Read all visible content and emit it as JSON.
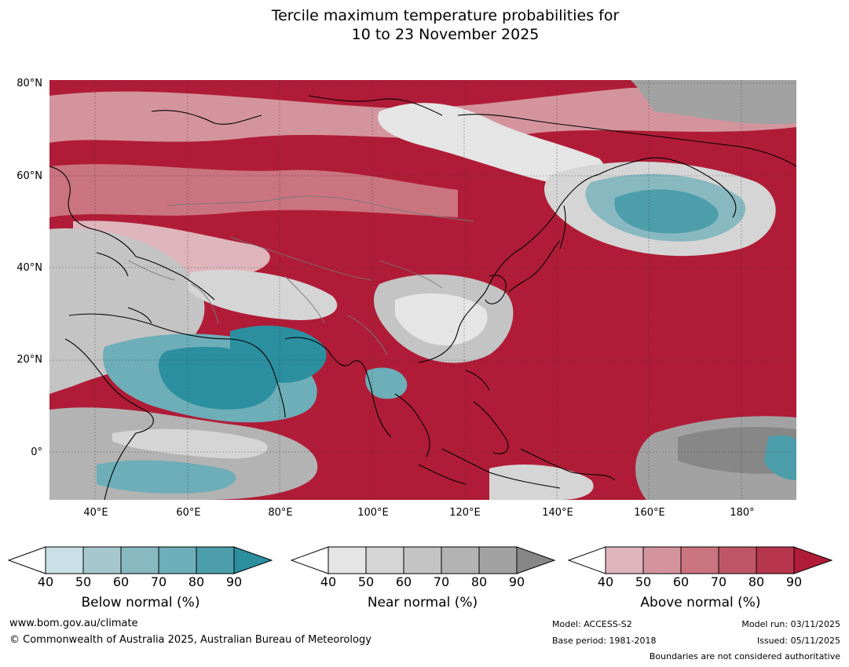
{
  "title_line1": "Tercile maximum temperature probabilities for",
  "title_line2": "10 to 23 November 2025",
  "axes": {
    "lat_labels": [
      "80°N",
      "60°N",
      "40°N",
      "20°N",
      "0°"
    ],
    "lon_labels": [
      "40°E",
      "60°E",
      "80°E",
      "100°E",
      "120°E",
      "140°E",
      "160°E",
      "180°"
    ]
  },
  "legend": {
    "below": {
      "title": "Below normal (%)",
      "ticks": [
        "40",
        "50",
        "60",
        "70",
        "80",
        "90"
      ],
      "colors": [
        "#c9e0e6",
        "#a6c7cd",
        "#89b9c0",
        "#6daeb8",
        "#4d9eab",
        "#2b8f9f"
      ]
    },
    "near": {
      "title": "Near normal (%)",
      "ticks": [
        "40",
        "50",
        "60",
        "70",
        "80",
        "90"
      ],
      "colors": [
        "#e5e5e5",
        "#d5d5d5",
        "#c4c4c4",
        "#b3b3b3",
        "#a2a2a2",
        "#878787"
      ]
    },
    "above": {
      "title": "Above normal (%)",
      "ticks": [
        "40",
        "50",
        "60",
        "70",
        "80",
        "90"
      ],
      "colors": [
        "#dfb5bc",
        "#d4949d",
        "#ca747f",
        "#bf5666",
        "#b7364c",
        "#b01c37"
      ]
    }
  },
  "footer": {
    "url": "www.bom.gov.au/climate",
    "copyright": "© Commonwealth of Australia 2025, Australian Bureau of Meteorology",
    "model": "Model: ACCESS-S2",
    "base_period": "Base period: 1981-2018",
    "model_run": "Model run: 03/11/2025",
    "issued": "Issued: 05/11/2025",
    "disclaimer": "Boundaries are not considered authoritative"
  }
}
